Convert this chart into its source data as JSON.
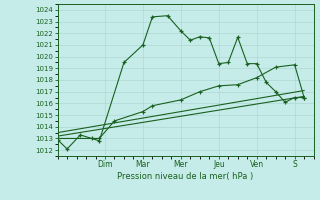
{
  "xlabel": "Pression niveau de la mer( hPa )",
  "bg_color": "#c5ece8",
  "grid_color": "#b0d8d4",
  "grid_color_major": "#9bbfbc",
  "line_color": "#1a6020",
  "ylim": [
    1011.5,
    1024.5
  ],
  "yticks": [
    1012,
    1013,
    1014,
    1015,
    1016,
    1017,
    1018,
    1019,
    1020,
    1021,
    1022,
    1023,
    1024
  ],
  "xlim": [
    0,
    13.5
  ],
  "day_labels": [
    "Dim",
    "Mar",
    "Mer",
    "Jeu",
    "Ven",
    "S"
  ],
  "day_positions": [
    2.5,
    4.5,
    6.5,
    8.5,
    10.5,
    12.5
  ],
  "series1_x": [
    0.0,
    0.5,
    1.2,
    1.8,
    2.2,
    3.5,
    4.5,
    5.0,
    5.8,
    6.5,
    7.0,
    7.5,
    8.0,
    8.5,
    9.0,
    9.5,
    10.0,
    10.5,
    11.0,
    11.5,
    12.0,
    12.5,
    13.0
  ],
  "series1_y": [
    1012.9,
    1012.1,
    1013.3,
    1013.0,
    1012.8,
    1019.5,
    1021.0,
    1023.4,
    1023.5,
    1022.2,
    1021.4,
    1021.7,
    1021.6,
    1019.4,
    1019.5,
    1021.65,
    1019.4,
    1019.4,
    1017.8,
    1017.0,
    1016.1,
    1016.5,
    1016.5
  ],
  "series2_x": [
    0.0,
    2.2,
    3.0,
    4.5,
    5.0,
    6.5,
    7.5,
    8.5,
    9.5,
    10.5,
    11.5,
    12.5,
    13.0
  ],
  "series2_y": [
    1013.0,
    1013.0,
    1014.5,
    1015.3,
    1015.8,
    1016.3,
    1017.0,
    1017.5,
    1017.6,
    1018.2,
    1019.1,
    1019.3,
    1016.5
  ],
  "series3_x": [
    0.0,
    13.0
  ],
  "series3_y": [
    1013.2,
    1016.6
  ],
  "series4_x": [
    0.0,
    13.0
  ],
  "series4_y": [
    1013.5,
    1017.1
  ]
}
